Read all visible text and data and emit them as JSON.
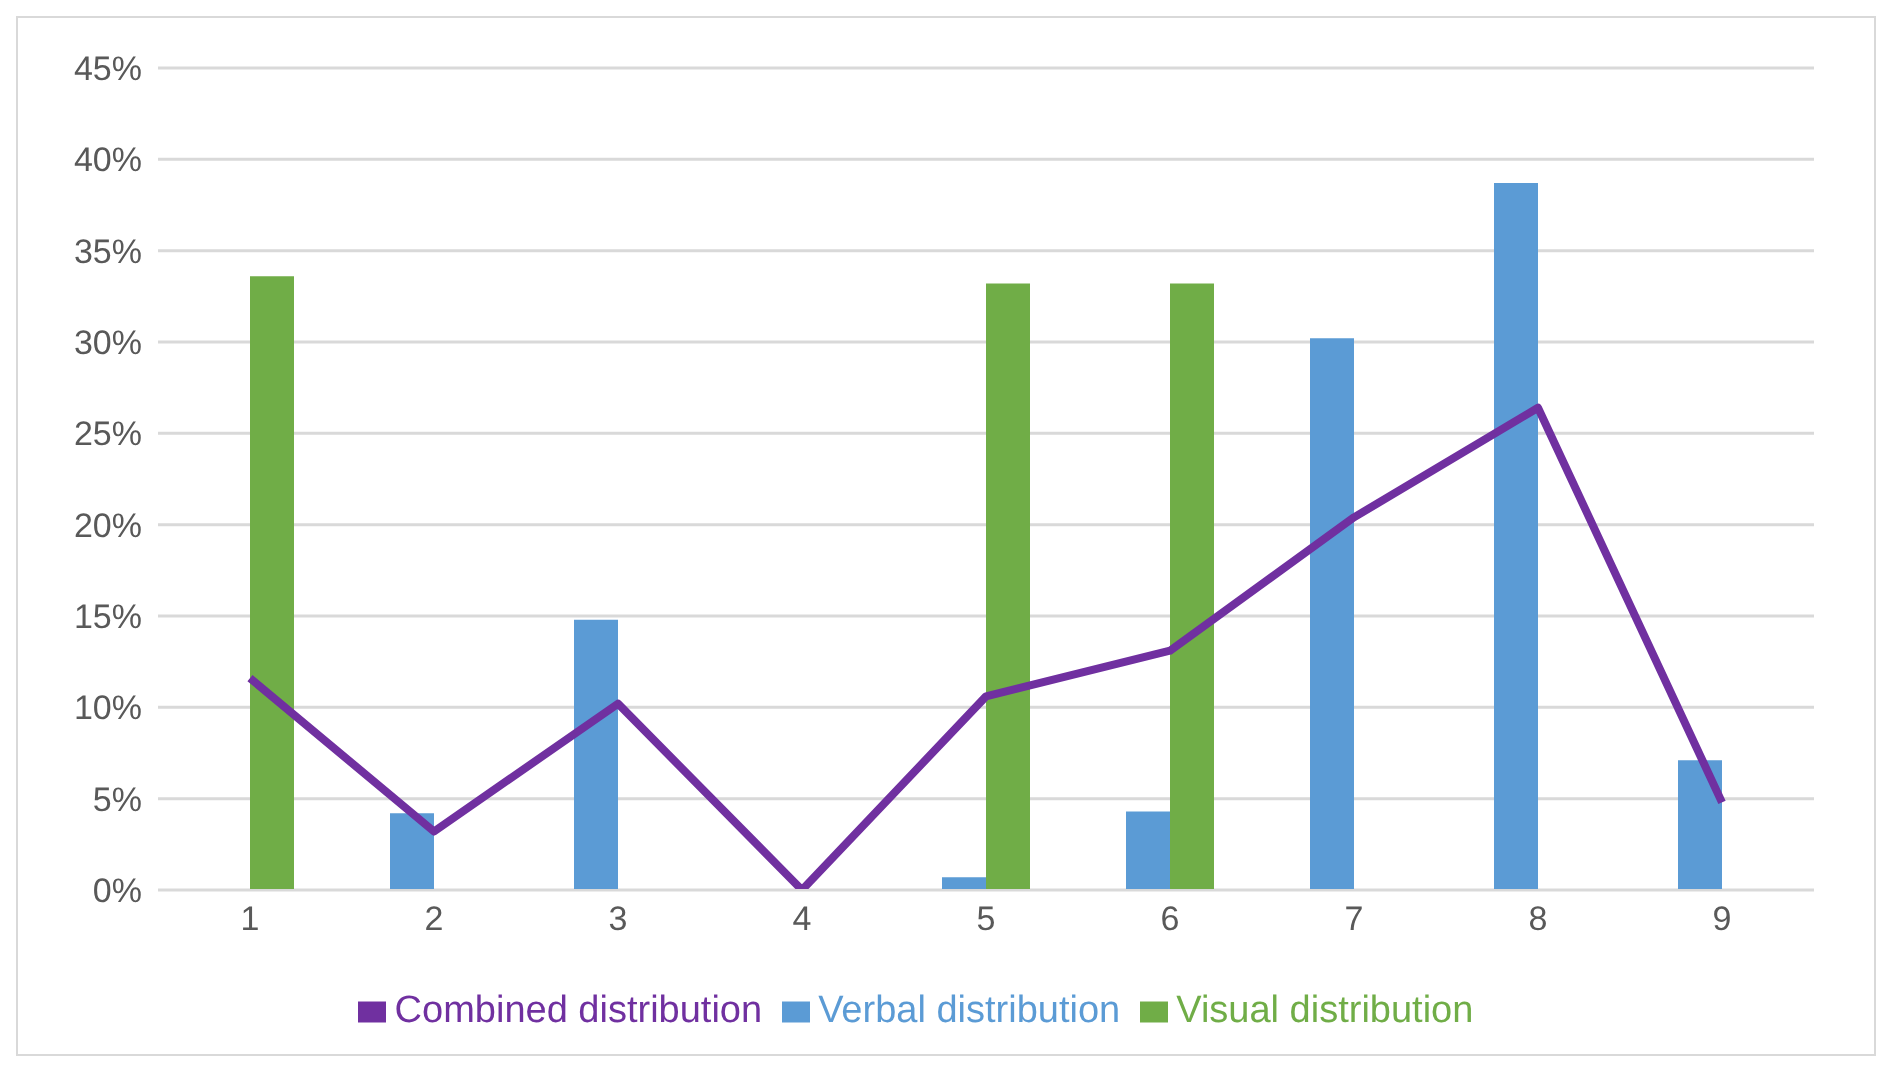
{
  "chart_data": {
    "type": "bar",
    "categories": [
      "1",
      "2",
      "3",
      "4",
      "5",
      "6",
      "7",
      "8",
      "9"
    ],
    "series": [
      {
        "name": "Verbal distribution",
        "color": "#5b9bd5",
        "values": [
          0,
          4.2,
          14.8,
          0,
          0.7,
          4.3,
          30.2,
          38.7,
          7.1
        ]
      },
      {
        "name": "Visual distribution",
        "color": "#70ad47",
        "values": [
          33.6,
          0,
          0,
          0,
          33.2,
          33.2,
          0,
          0,
          0
        ]
      },
      {
        "name": "Combined distribution",
        "type": "line",
        "color": "#7030a0",
        "values": [
          11.6,
          3.2,
          10.2,
          0,
          10.6,
          13.1,
          20.4,
          26.4,
          4.8
        ]
      }
    ],
    "ylim": [
      0,
      45
    ],
    "yticks": [
      {
        "value": 0,
        "label": "0%"
      },
      {
        "value": 5,
        "label": "5%"
      },
      {
        "value": 10,
        "label": "10%"
      },
      {
        "value": 15,
        "label": "15%"
      },
      {
        "value": 20,
        "label": "20%"
      },
      {
        "value": 25,
        "label": "25%"
      },
      {
        "value": 30,
        "label": "30%"
      },
      {
        "value": 35,
        "label": "35%"
      },
      {
        "value": 40,
        "label": "40%"
      },
      {
        "value": 45,
        "label": "45%"
      }
    ],
    "grid": "y",
    "legend": "bottom",
    "marker": "none"
  }
}
